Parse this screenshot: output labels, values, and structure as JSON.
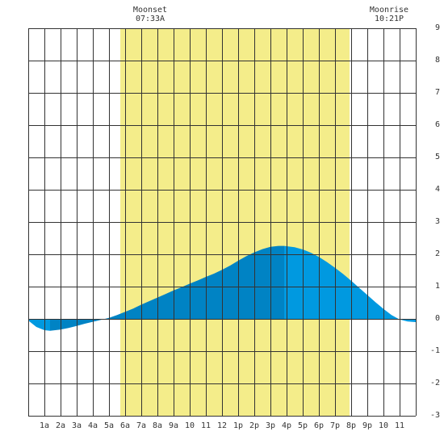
{
  "chart_data": {
    "type": "area",
    "title": "",
    "xlabel": "",
    "ylabel": "",
    "x_tick_labels": [
      "1a",
      "2a",
      "3a",
      "4a",
      "5a",
      "6a",
      "7a",
      "8a",
      "9a",
      "10",
      "11",
      "12",
      "1p",
      "2p",
      "3p",
      "4p",
      "5p",
      "6p",
      "7p",
      "8p",
      "9p",
      "10",
      "11"
    ],
    "y_ticks": [
      -3,
      -2,
      -1,
      0,
      1,
      2,
      3,
      4,
      5,
      6,
      7,
      8,
      9
    ],
    "xlim": [
      0,
      24
    ],
    "ylim": [
      -3,
      9
    ],
    "grid": true,
    "daylight": {
      "start_hour": 5.7,
      "end_hour": 19.9
    },
    "moon_events": [
      {
        "label": "Moonset",
        "time": "07:33A",
        "hour": 7.55
      },
      {
        "label": "Moonrise",
        "time": "10:21P",
        "hour": 22.35
      }
    ],
    "tide_turning_hours": [
      1.35,
      15.85
    ],
    "series": [
      {
        "x": [
          0,
          0.5,
          1,
          1.35,
          2,
          2.5,
          3,
          3.5,
          4,
          4.5,
          5,
          5.5,
          6,
          6.5,
          7,
          7.5,
          8,
          8.5,
          9,
          9.5,
          10,
          10.5,
          11,
          11.5,
          12,
          12.5,
          13,
          13.5,
          14,
          14.5,
          15,
          15.5,
          15.85,
          16,
          16.5,
          17,
          17.5,
          18,
          18.5,
          19,
          19.5,
          20,
          20.5,
          21,
          21.5,
          22,
          22.5,
          23,
          23.5,
          24
        ],
        "y": [
          -0.05,
          -0.25,
          -0.35,
          -0.37,
          -0.33,
          -0.28,
          -0.22,
          -0.15,
          -0.09,
          -0.03,
          0.03,
          0.12,
          0.22,
          0.32,
          0.44,
          0.55,
          0.66,
          0.77,
          0.88,
          0.98,
          1.09,
          1.19,
          1.3,
          1.4,
          1.52,
          1.65,
          1.8,
          1.94,
          2.06,
          2.16,
          2.23,
          2.26,
          2.26,
          2.25,
          2.22,
          2.15,
          2.05,
          1.92,
          1.76,
          1.58,
          1.39,
          1.18,
          0.96,
          0.74,
          0.52,
          0.31,
          0.12,
          -0.02,
          -0.08,
          -0.1
        ]
      }
    ],
    "colors": {
      "daylight": "#f4ed8a",
      "tide_light": "#0099e0",
      "tide_dark": "#0083c4",
      "grid": "#333333"
    }
  }
}
